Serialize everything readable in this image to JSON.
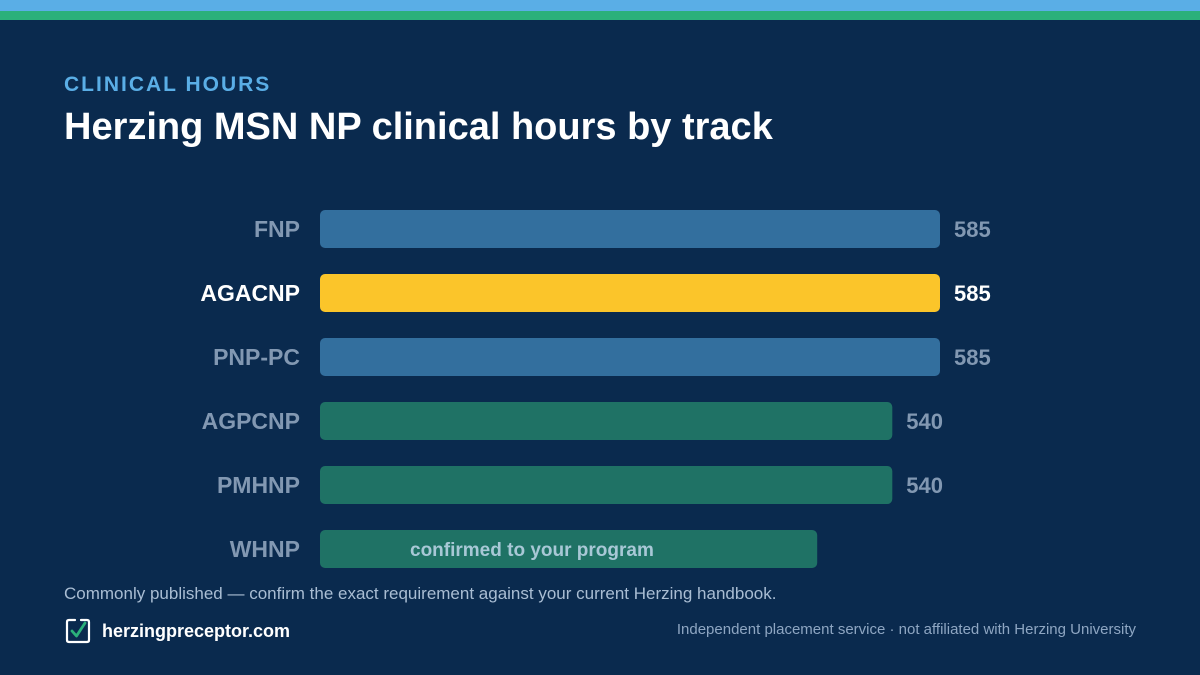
{
  "header": {
    "eyebrow": "CLINICAL HOURS",
    "title": "Herzing MSN NP clinical hours by track"
  },
  "chart_data": {
    "type": "bar",
    "orientation": "horizontal",
    "categories": [
      "FNP",
      "AGACNP",
      "PNP-PC",
      "AGPCNP",
      "PMHNP",
      "WHNP"
    ],
    "values": [
      585,
      585,
      585,
      540,
      540,
      null
    ],
    "value_labels": [
      "585",
      "585",
      "585",
      "540",
      "540",
      ""
    ],
    "bar_annotations": [
      "",
      "",
      "",
      "",
      "",
      "confirmed to your program"
    ],
    "highlight_category": "AGACNP",
    "xlim": [
      0,
      585
    ],
    "grid": false,
    "legend": "none",
    "colors": {
      "FNP": "#336f9e",
      "AGACNP": "#fbc52a",
      "PNP-PC": "#336f9e",
      "AGPCNP": "#1f7265",
      "PMHNP": "#1f7265",
      "WHNP": "#1f7265"
    }
  },
  "footnote": "Commonly published — confirm the exact requirement against your current Herzing handbook.",
  "footer": {
    "brand_icon": "check-badge-icon",
    "brand_name": "herzingpreceptor.com",
    "disclaimer": "Independent placement service · not affiliated with Herzing University"
  },
  "theme": {
    "background": "#0a2a4e",
    "stripe_blue": "#5aaee6",
    "stripe_green": "#2bb07a",
    "eyebrow_color": "#5aaee6",
    "label_muted": "#8298b2",
    "label_highlight": "#ffffff",
    "annotation_color": "#a8c8d6"
  }
}
